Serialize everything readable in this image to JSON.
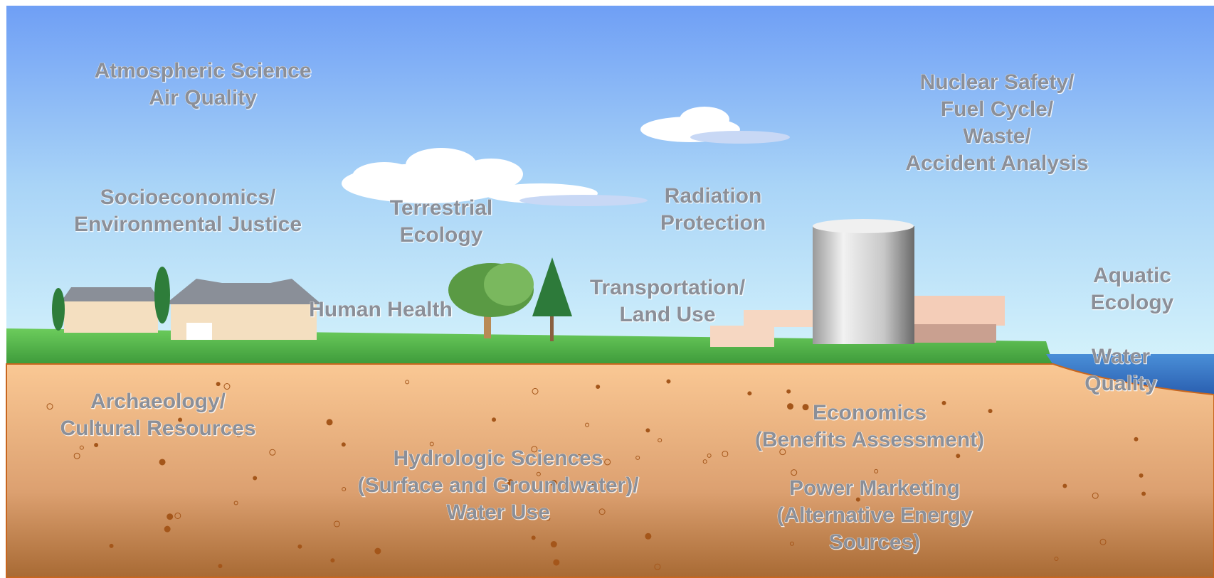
{
  "labels": [
    {
      "lines": [
        "Atmospheric Science",
        "Air Quality"
      ]
    },
    {
      "lines": [
        "Nuclear Safety/",
        "Fuel Cycle/",
        "Waste/",
        "Accident  Analysis"
      ]
    },
    {
      "lines": [
        "Socioeconomics/",
        "Environmental Justice"
      ]
    },
    {
      "lines": [
        "Terrestrial",
        "Ecology"
      ]
    },
    {
      "lines": [
        "Radiation",
        "Protection"
      ]
    },
    {
      "lines": [
        "Human Health"
      ]
    },
    {
      "lines": [
        "Transportation/",
        "Land Use"
      ]
    },
    {
      "lines": [
        "Aquatic",
        "Ecology"
      ]
    },
    {
      "lines": [
        "Water",
        "Quality"
      ]
    },
    {
      "lines": [
        "Archaeology/",
        "Cultural Resources"
      ]
    },
    {
      "lines": [
        "Economics",
        "(Benefits Assessment)"
      ]
    },
    {
      "lines": [
        "Hydrologic Sciences",
        "(Surface and Groundwater)/",
        "Water Use"
      ]
    },
    {
      "lines": [
        "Power Marketing",
        "(Alternative Energy",
        "Sources)"
      ]
    }
  ]
}
